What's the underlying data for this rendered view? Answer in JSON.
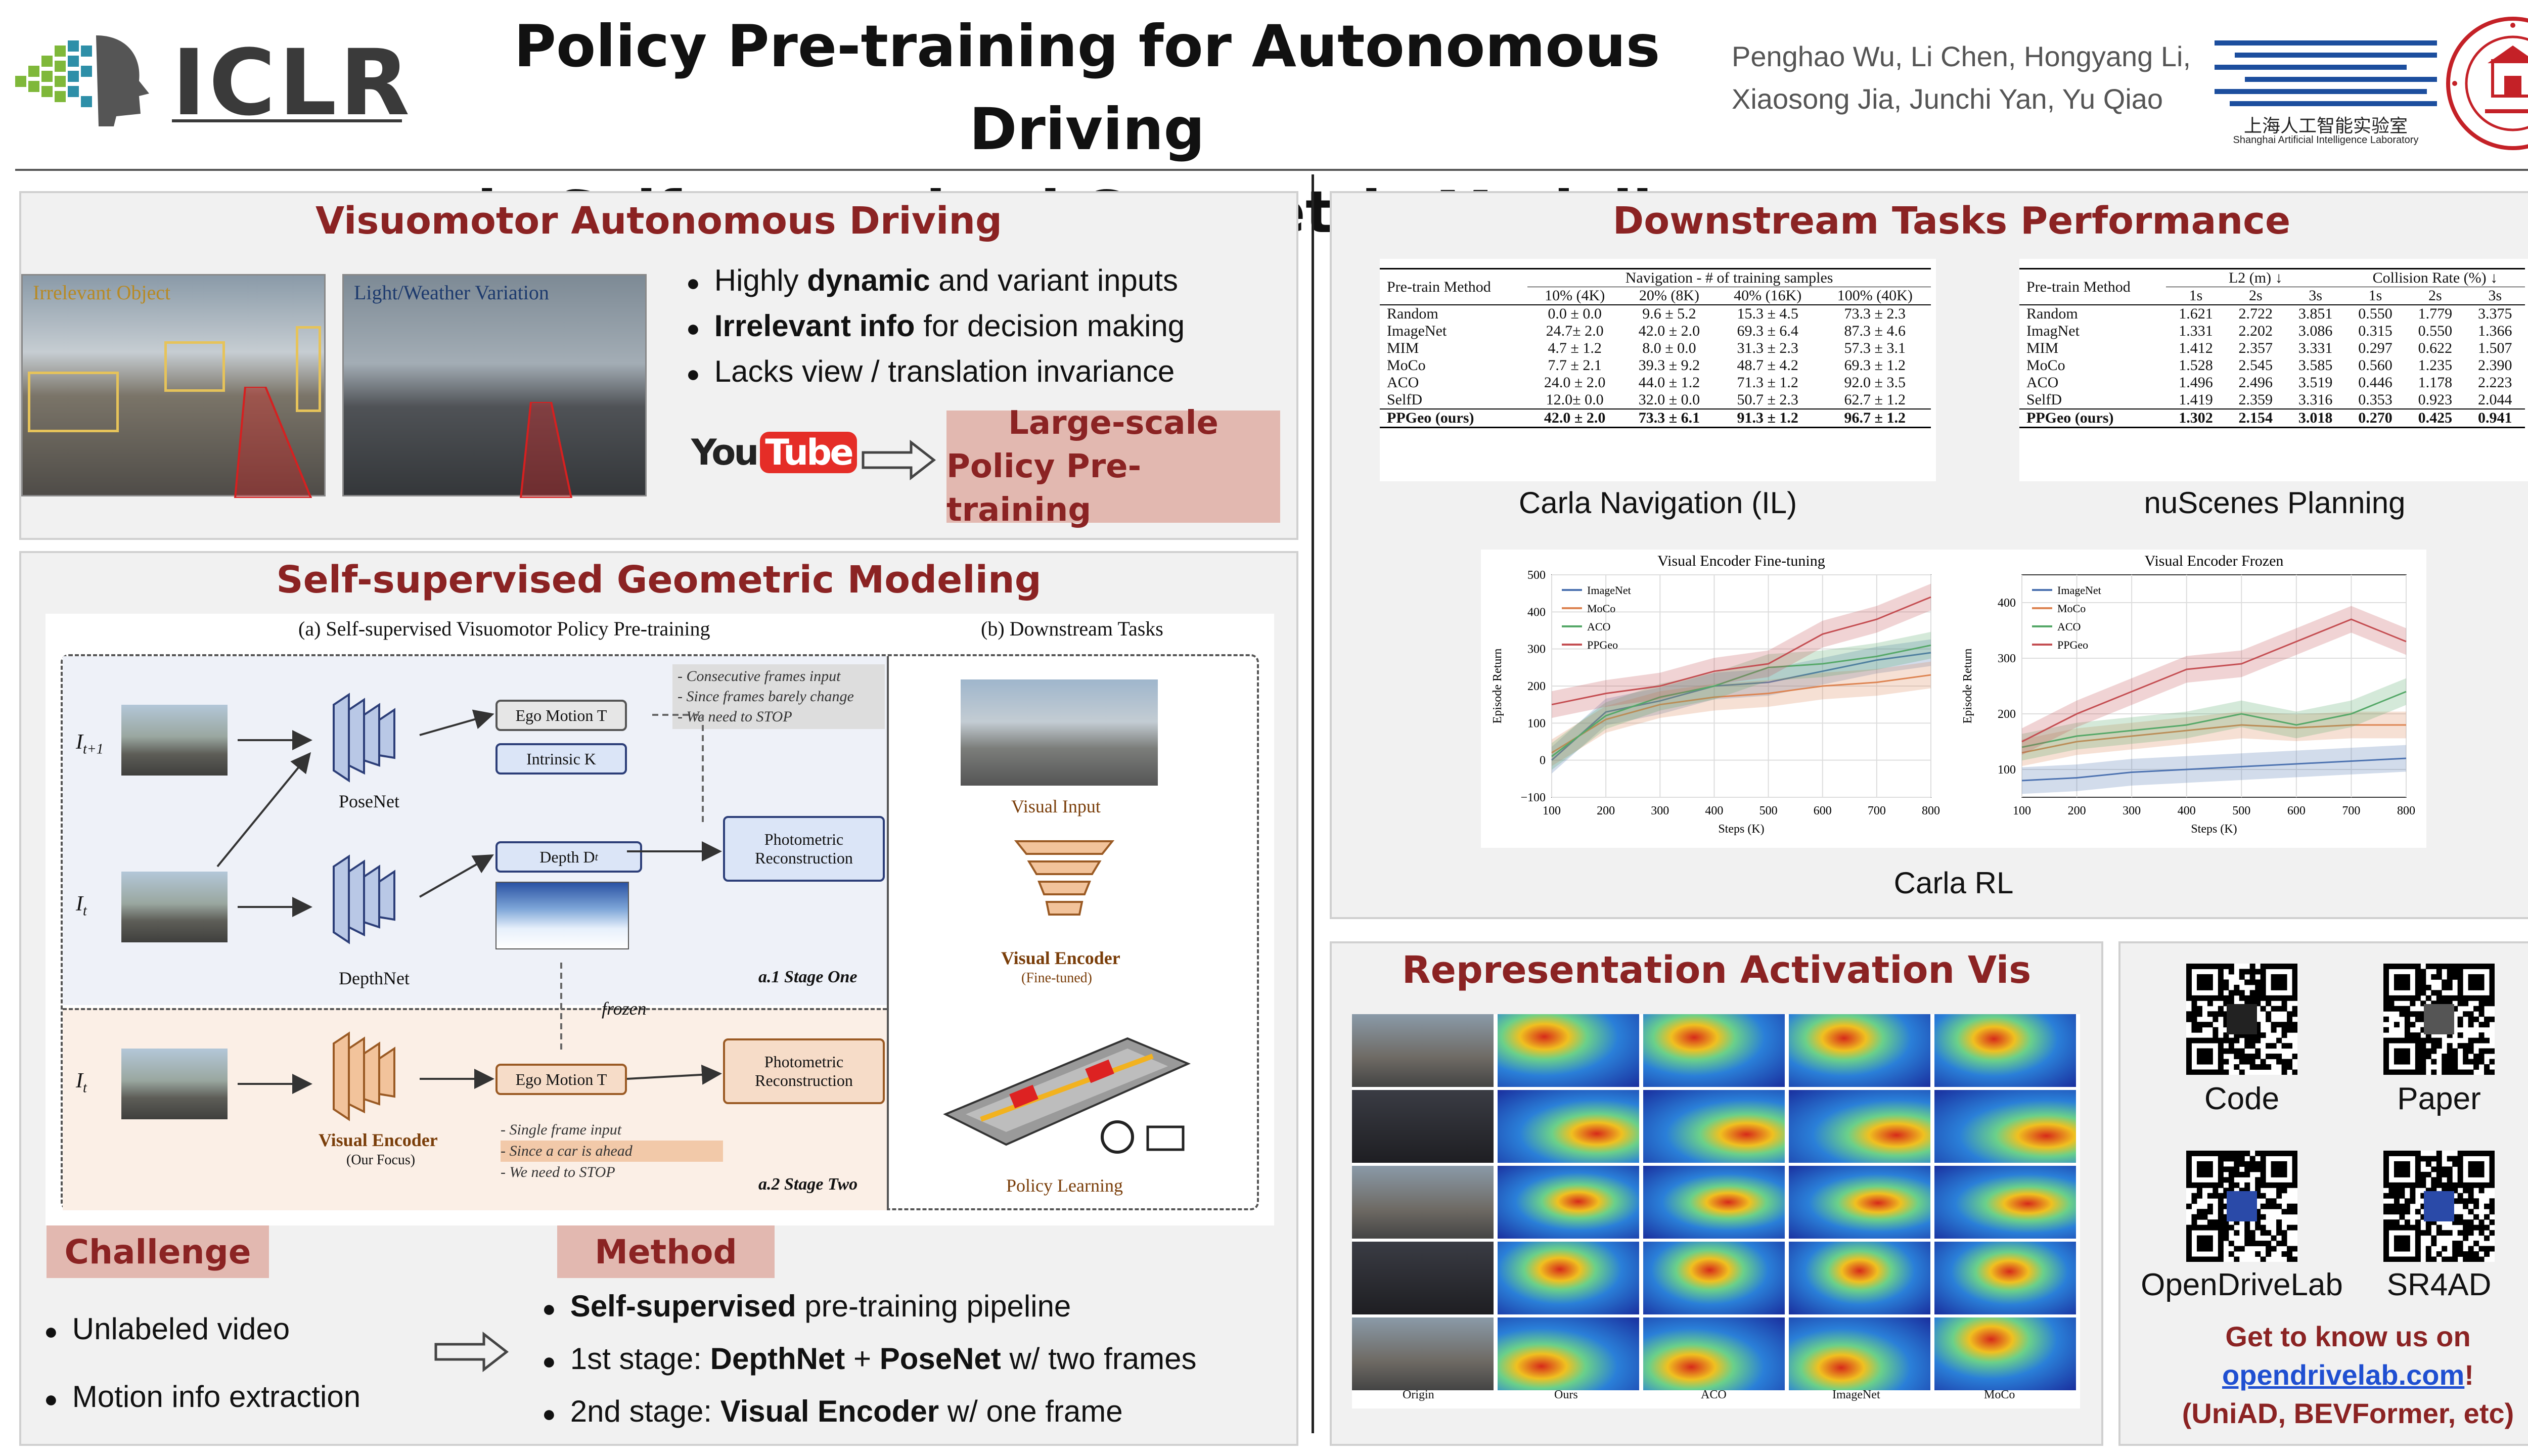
{
  "header": {
    "venue": "ICLR",
    "title_line1": "Policy Pre-training for Autonomous Driving",
    "title_line2": "via Self-supervised Geometric Modeling",
    "authors_line1": "Penghao Wu, Li Chen, Hongyang Li,",
    "authors_line2": "Xiaosong Jia, Junchi Yan, Yu Qiao",
    "lab_cn": "上海人工智能实验室",
    "lab_en": "Shanghai Artificial Intelligence Laboratory"
  },
  "visuomotor": {
    "title": "Visuomotor Autonomous Driving",
    "img1_label": "Irrelevant Object",
    "img2_label": "Light/Weather Variation",
    "bullets": [
      {
        "pre": "Highly ",
        "bold": "dynamic",
        "post": " and variant inputs"
      },
      {
        "pre": "",
        "bold": "Irrelevant info",
        "post": " for decision making"
      },
      {
        "pre": "Lacks view / translation invariance",
        "bold": "",
        "post": ""
      }
    ],
    "youtube_you": "You",
    "youtube_tube": "Tube",
    "box_line1": "Large-scale",
    "box_line2": "Policy Pre-training"
  },
  "ssgm": {
    "title": "Self-supervised Geometric Modeling",
    "fig_a_title": "(a) Self-supervised Visuomotor Policy Pre-training",
    "fig_b_title": "(b) Downstream Tasks",
    "i_t1": "I",
    "i_t1_sub": "t+1",
    "i_t": "I",
    "i_t_sub": "t",
    "posenet": "PoseNet",
    "depthnet": "DepthNet",
    "ego_motion": "Ego Motion T",
    "intrinsic": "Intrinsic K",
    "depth": "Depth D",
    "depth_sub": "t",
    "photometric": "Photometric Reconstruction",
    "note1": [
      "- Consecutive frames input",
      "- Since frames barely change",
      "- We need to STOP"
    ],
    "stage1": "a.1 Stage One",
    "frozen": "frozen",
    "visual_encoder": "Visual Encoder",
    "our_focus": "(Our Focus)",
    "note2": [
      "- Single frame input",
      "- Since a car is ahead",
      "- We need to STOP"
    ],
    "stage2": "a.2 Stage Two",
    "visual_input": "Visual Input",
    "ve_downstream": "Visual Encoder",
    "fine_tuned": "(Fine-tuned)",
    "policy_learning": "Policy Learning",
    "challenge_tag": "Challenge",
    "method_tag": "Method",
    "challenges": [
      "Unlabeled video",
      "Motion info extraction"
    ],
    "methods": [
      {
        "pre": "",
        "bold": "Self-supervised",
        "post": " pre-training pipeline",
        "bold2": "",
        "post2": ""
      },
      {
        "pre": "1st stage: ",
        "bold": "DepthNet",
        "post": " + ",
        "bold2": "PoseNet",
        "post2": " w/ two frames"
      },
      {
        "pre": "2nd stage: ",
        "bold": "Visual Encoder",
        "post": " w/ one frame",
        "bold2": "",
        "post2": ""
      }
    ]
  },
  "downstream": {
    "title": "Downstream Tasks Performance",
    "nav_caption": "Carla Navigation (IL)",
    "nus_caption": "nuScenes Planning",
    "rl_caption": "Carla RL",
    "nav_table": {
      "col_method": "Pre-train Method",
      "group": "Navigation - # of training samples",
      "cols": [
        "10% (4K)",
        "20% (8K)",
        "40% (16K)",
        "100% (40K)"
      ],
      "rows": [
        [
          "Random",
          "0.0 ± 0.0",
          "9.6 ± 5.2",
          "15.3 ± 4.5",
          "73.3 ± 2.3"
        ],
        [
          "ImageNet",
          "24.7± 2.0",
          "42.0 ± 2.0",
          "69.3 ± 6.4",
          "87.3 ± 4.6"
        ],
        [
          "MIM",
          "4.7 ± 1.2",
          "8.0 ± 0.0",
          "31.3 ± 2.3",
          "57.3 ± 3.1"
        ],
        [
          "MoCo",
          "7.7 ± 2.1",
          "39.3 ± 9.2",
          "48.7 ± 4.2",
          "69.3 ± 1.2"
        ],
        [
          "ACO",
          "24.0 ± 2.0",
          "44.0 ± 1.2",
          "71.3 ± 1.2",
          "92.0 ± 3.5"
        ],
        [
          "SelfD",
          "12.0± 0.0",
          "32.0 ± 0.0",
          "50.7 ± 2.3",
          "62.7 ± 1.2"
        ]
      ],
      "ours": [
        "PPGeo (ours)",
        "42.0 ± 2.0",
        "73.3 ± 6.1",
        "91.3 ± 1.2",
        "96.7 ± 1.2"
      ]
    },
    "nus_table": {
      "col_method": "Pre-train Method",
      "group1": "L2 (m) ↓",
      "group2": "Collision Rate (%) ↓",
      "cols": [
        "1s",
        "2s",
        "3s",
        "1s",
        "2s",
        "3s"
      ],
      "rows": [
        [
          "Random",
          "1.621",
          "2.722",
          "3.851",
          "0.550",
          "1.779",
          "3.375"
        ],
        [
          "ImagNet",
          "1.331",
          "2.202",
          "3.086",
          "0.315",
          "0.550",
          "1.366"
        ],
        [
          "MIM",
          "1.412",
          "2.357",
          "3.331",
          "0.297",
          "0.622",
          "1.507"
        ],
        [
          "MoCo",
          "1.528",
          "2.545",
          "3.585",
          "0.560",
          "1.235",
          "2.390"
        ],
        [
          "ACO",
          "1.496",
          "2.496",
          "3.519",
          "0.446",
          "1.178",
          "2.223"
        ],
        [
          "SelfD",
          "1.419",
          "2.359",
          "3.316",
          "0.353",
          "0.923",
          "2.044"
        ]
      ],
      "ours": [
        "PPGeo (ours)",
        "1.302",
        "2.154",
        "3.018",
        "0.270",
        "0.425",
        "0.941"
      ]
    }
  },
  "chart_data": [
    {
      "type": "line",
      "title": "Visual Encoder Fine-tuning",
      "xlabel": "Steps (K)",
      "ylabel": "Episode Return",
      "xlim": [
        100,
        800
      ],
      "ylim": [
        -100,
        500
      ],
      "xticks": [
        "100",
        "200",
        "300",
        "400",
        "500",
        "600",
        "700",
        "800"
      ],
      "yticks": [
        "−100",
        "0",
        "100",
        "200",
        "300",
        "400",
        "500"
      ],
      "legend": "top-left",
      "grid": true,
      "x": [
        100,
        200,
        300,
        400,
        500,
        600,
        700,
        800
      ],
      "series": [
        {
          "name": "ImageNet",
          "color": "#4c72b0",
          "values": [
            0,
            130,
            160,
            200,
            210,
            240,
            270,
            290
          ]
        },
        {
          "name": "MoCo",
          "color": "#dd8452",
          "values": [
            20,
            110,
            150,
            170,
            180,
            200,
            210,
            230
          ]
        },
        {
          "name": "ACO",
          "color": "#55a868",
          "values": [
            10,
            120,
            170,
            200,
            250,
            260,
            280,
            310
          ]
        },
        {
          "name": "PPGeo",
          "color": "#c44e52",
          "values": [
            150,
            180,
            200,
            240,
            260,
            340,
            380,
            440
          ]
        }
      ]
    },
    {
      "type": "line",
      "title": "Visual Encoder Frozen",
      "xlabel": "Steps (K)",
      "ylabel": "Episode Return",
      "xlim": [
        100,
        800
      ],
      "ylim": [
        50,
        450
      ],
      "xticks": [
        "100",
        "200",
        "300",
        "400",
        "500",
        "600",
        "700",
        "800"
      ],
      "yticks": [
        "100",
        "200",
        "300",
        "400"
      ],
      "legend": "top-left",
      "grid": true,
      "x": [
        100,
        200,
        300,
        400,
        500,
        600,
        700,
        800
      ],
      "series": [
        {
          "name": "ImageNet",
          "color": "#4c72b0",
          "values": [
            80,
            85,
            95,
            100,
            105,
            110,
            115,
            120
          ]
        },
        {
          "name": "MoCo",
          "color": "#dd8452",
          "values": [
            130,
            150,
            160,
            170,
            180,
            175,
            180,
            180
          ]
        },
        {
          "name": "ACO",
          "color": "#55a868",
          "values": [
            140,
            160,
            170,
            180,
            200,
            180,
            200,
            240
          ]
        },
        {
          "name": "PPGeo",
          "color": "#c44e52",
          "values": [
            150,
            200,
            240,
            280,
            290,
            330,
            370,
            330
          ]
        }
      ]
    }
  ],
  "activation": {
    "title": "Representation Activation Vis",
    "labels": [
      "Origin",
      "Ours",
      "ACO",
      "ImageNet",
      "MoCo"
    ]
  },
  "links": {
    "code": "Code",
    "paper": "Paper",
    "opendrivelab": "OpenDriveLab",
    "sr4ad": "SR4AD",
    "cta_line1": "Get to know us on",
    "cta_link": "opendrivelab.com",
    "cta_excl": "!",
    "cta_line3": "(UniAD, BEVFormer, etc)"
  },
  "colors": {
    "accent": "#8b2323",
    "tag_bg": "#e2b8b0",
    "link": "#1f4fd1"
  }
}
